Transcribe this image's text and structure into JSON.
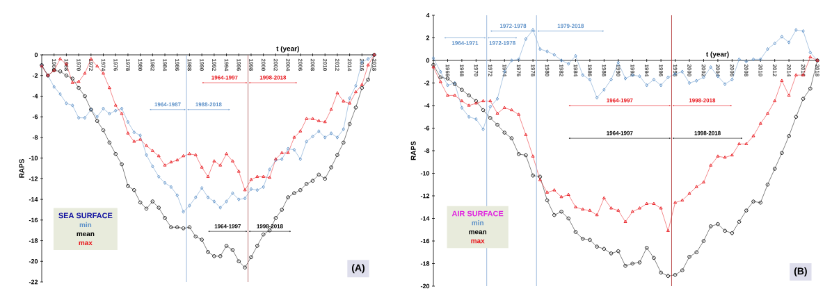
{
  "chart_data": [
    {
      "type": "line",
      "title": "(A)",
      "xlabel": "t (year)",
      "ylabel": "RAPS",
      "legend_title": "SEA SURFACE",
      "legend": "bottom left",
      "x": [
        1964,
        1965,
        1966,
        1967,
        1968,
        1969,
        1970,
        1971,
        1972,
        1973,
        1974,
        1975,
        1976,
        1977,
        1978,
        1979,
        1980,
        1981,
        1982,
        1983,
        1984,
        1985,
        1986,
        1987,
        1988,
        1989,
        1990,
        1991,
        1992,
        1993,
        1994,
        1995,
        1996,
        1997,
        1998,
        1999,
        2000,
        2001,
        2002,
        2003,
        2004,
        2005,
        2006,
        2007,
        2008,
        2009,
        2010,
        2011,
        2012,
        2013,
        2014,
        2015,
        2016,
        2017,
        2018
      ],
      "xlim": [
        1964,
        2018
      ],
      "xticks": [
        1966,
        1968,
        1970,
        1972,
        1974,
        1976,
        1978,
        1980,
        1982,
        1984,
        1986,
        1988,
        1990,
        1992,
        1994,
        1996,
        1998,
        2000,
        2002,
        2004,
        2006,
        2008,
        2010,
        2012,
        2014,
        2016,
        2018
      ],
      "ylim": [
        -22,
        0
      ],
      "yticks": [
        -22,
        -20,
        -18,
        -16,
        -14,
        -12,
        -10,
        -8,
        -6,
        -4,
        -2,
        0
      ],
      "series": [
        {
          "name": "min",
          "color": "#5b8fc7",
          "marker": "diamond",
          "values": [
            -1.0,
            -2.0,
            -3.1,
            -3.8,
            -4.7,
            -4.9,
            -6.1,
            -6.1,
            -5.3,
            -6.0,
            -5.2,
            -5.7,
            -5.4,
            -5.2,
            -6.5,
            -7.5,
            -7.8,
            -9.7,
            -10.8,
            -11.8,
            -12.4,
            -12.8,
            -13.6,
            -15.2,
            -14.6,
            -13.8,
            -12.9,
            -13.8,
            -14.2,
            -14.8,
            -14.2,
            -13.4,
            -14.0,
            -13.9,
            -13.0,
            -13.1,
            -12.8,
            -11.1,
            -10.2,
            -10.1,
            -9.1,
            -9.2,
            -10.1,
            -8.4,
            -7.9,
            -7.4,
            -8.0,
            -7.6,
            -8.0,
            -7.2,
            -4.2,
            -3.0,
            -0.7,
            -0.4,
            0
          ]
        },
        {
          "name": "mean",
          "color": "#000000",
          "marker": "circle",
          "values": [
            -1.0,
            -2.0,
            -1.5,
            -1.6,
            -2.0,
            -2.3,
            -3.2,
            -4.0,
            -5.3,
            -6.4,
            -7.3,
            -8.5,
            -9.6,
            -10.6,
            -12.7,
            -13.1,
            -14.3,
            -14.9,
            -14.2,
            -14.8,
            -15.8,
            -16.7,
            -16.7,
            -16.8,
            -16.7,
            -17.6,
            -17.9,
            -19.1,
            -19.5,
            -19.5,
            -18.5,
            -18.9,
            -20.0,
            -20.6,
            -19.6,
            -18.5,
            -17.4,
            -17.0,
            -15.8,
            -15.0,
            -13.8,
            -13.4,
            -13.1,
            -12.5,
            -12.2,
            -11.6,
            -12.0,
            -10.9,
            -9.7,
            -8.5,
            -6.7,
            -5.1,
            -3.2,
            -2.4,
            0
          ]
        },
        {
          "name": "max",
          "color": "#e8141a",
          "marker": "triangle",
          "values": [
            -1.1,
            -2.0,
            -1.5,
            -0.4,
            -0.9,
            -2.7,
            -2.6,
            -1.8,
            -0.4,
            -1.1,
            -1.8,
            -3.2,
            -4.9,
            -5.7,
            -7.6,
            -8.4,
            -8.2,
            -8.8,
            -9.3,
            -9.8,
            -10.7,
            -10.4,
            -10.2,
            -9.8,
            -9.6,
            -9.7,
            -10.9,
            -11.8,
            -10.3,
            -10.7,
            -9.6,
            -10.3,
            -11.3,
            -13.1,
            -12.1,
            -11.8,
            -11.8,
            -11.9,
            -10.1,
            -9.5,
            -9.5,
            -8.0,
            -7.4,
            -6.2,
            -6.2,
            -6.4,
            -6.5,
            -5.3,
            -3.7,
            -4.5,
            -4.7,
            -3.6,
            -2.9,
            -1.0,
            0
          ]
        }
      ],
      "ref_lines": [
        {
          "axis": "x",
          "value": 1987.5,
          "color": "#8fb0d8"
        },
        {
          "axis": "x",
          "value": 1997.5,
          "color": "#b06060"
        }
      ],
      "annotations": [
        "1964-1987",
        "1988-2018",
        "1964-1997",
        "1998-2018",
        "1964-1997",
        "1998-2018"
      ]
    },
    {
      "type": "line",
      "title": "(B)",
      "xlabel": "t (year)",
      "ylabel": "RAPS",
      "legend_title": "AIR SURFACE",
      "legend": "bottom left",
      "x": [
        1964,
        1965,
        1966,
        1967,
        1968,
        1969,
        1970,
        1971,
        1972,
        1973,
        1974,
        1975,
        1976,
        1977,
        1978,
        1979,
        1980,
        1981,
        1982,
        1983,
        1984,
        1985,
        1986,
        1987,
        1988,
        1989,
        1990,
        1991,
        1992,
        1993,
        1994,
        1995,
        1996,
        1997,
        1998,
        1999,
        2000,
        2001,
        2002,
        2003,
        2004,
        2005,
        2006,
        2007,
        2008,
        2009,
        2010,
        2011,
        2012,
        2013,
        2014,
        2015,
        2016,
        2017,
        2018
      ],
      "xlim": [
        1964,
        2018
      ],
      "xticks": [
        1966,
        1968,
        1970,
        1972,
        1974,
        1976,
        1978,
        1980,
        1982,
        1984,
        1986,
        1988,
        1990,
        1992,
        1994,
        1996,
        1998,
        2000,
        2002,
        2004,
        2006,
        2008,
        2010,
        2012,
        2014,
        2016,
        2018
      ],
      "ylim": [
        -20,
        4
      ],
      "yticks": [
        -20,
        -18,
        -16,
        -14,
        -12,
        -10,
        -8,
        -6,
        -4,
        -2,
        0,
        2,
        4
      ],
      "series": [
        {
          "name": "min",
          "color": "#5b8fc7",
          "marker": "diamond",
          "values": [
            0.2,
            -1.0,
            -2.2,
            -2.0,
            -4.2,
            -5.0,
            -5.2,
            -6.1,
            -4.1,
            -3.4,
            -1.0,
            0,
            0.1,
            1.9,
            2.7,
            1.0,
            0.8,
            0.5,
            0,
            -0.3,
            0.4,
            -1.3,
            -1.7,
            -3.3,
            -2.6,
            -1.7,
            -0.2,
            -1.6,
            -1.3,
            -1.4,
            -2.2,
            -1.7,
            -2.2,
            -1.5,
            -1.2,
            -1.0,
            -2.0,
            -1.8,
            -1.5,
            -0.6,
            -1.4,
            -2.1,
            -1.7,
            0.1,
            -0.1,
            0.1,
            0.1,
            1.0,
            1.5,
            2.1,
            1.6,
            2.7,
            2.6,
            0.7,
            0
          ]
        },
        {
          "name": "mean",
          "color": "#000000",
          "marker": "circle",
          "values": [
            -0.4,
            -1.5,
            -1.6,
            -2.1,
            -2.6,
            -3.1,
            -3.6,
            -4.4,
            -5.1,
            -5.7,
            -6.4,
            -6.9,
            -8.3,
            -8.4,
            -10.2,
            -10.3,
            -12.4,
            -13.7,
            -13.4,
            -14.0,
            -15.2,
            -15.8,
            -15.9,
            -16.5,
            -16.7,
            -17.1,
            -16.9,
            -18.2,
            -18.0,
            -17.9,
            -16.6,
            -17.5,
            -18.8,
            -19.1,
            -19.0,
            -18.6,
            -17.4,
            -17.0,
            -16.0,
            -14.7,
            -14.5,
            -15.1,
            -15.3,
            -14.3,
            -13.3,
            -12.5,
            -12.6,
            -11.0,
            -9.6,
            -8.2,
            -6.7,
            -5.0,
            -3.4,
            -2.5,
            0
          ]
        },
        {
          "name": "max",
          "color": "#e8141a",
          "marker": "triangle",
          "values": [
            -0.6,
            -1.9,
            -3.1,
            -3.1,
            -3.6,
            -4.0,
            -3.8,
            -3.6,
            -3.6,
            -4.7,
            -4.2,
            -4.4,
            -4.8,
            -6.6,
            -8.5,
            -10.6,
            -11.7,
            -11.5,
            -12.1,
            -11.9,
            -13.0,
            -13.2,
            -13.3,
            -13.7,
            -12.2,
            -13.1,
            -13.3,
            -14.3,
            -13.4,
            -13.1,
            -12.7,
            -12.7,
            -13.1,
            -15.1,
            -12.6,
            -12.4,
            -11.8,
            -11.2,
            -10.8,
            -9.3,
            -8.5,
            -8.6,
            -8.4,
            -7.4,
            -7.4,
            -6.7,
            -5.6,
            -4.7,
            -3.6,
            -1.8,
            -3.1,
            -1.3,
            -1.3,
            0.3,
            0
          ]
        }
      ],
      "ref_lines": [
        {
          "axis": "x",
          "value": 1971.5,
          "color": "#8fb0d8"
        },
        {
          "axis": "x",
          "value": 1978.5,
          "color": "#8fb0d8"
        },
        {
          "axis": "x",
          "value": 1997.5,
          "color": "#b03030"
        }
      ],
      "annotations": [
        "1964-1971",
        "1972-1978",
        "1972-1978",
        "1979-2018",
        "1964-1997",
        "1998-2018",
        "1964-1997",
        "1998-2018"
      ]
    }
  ]
}
